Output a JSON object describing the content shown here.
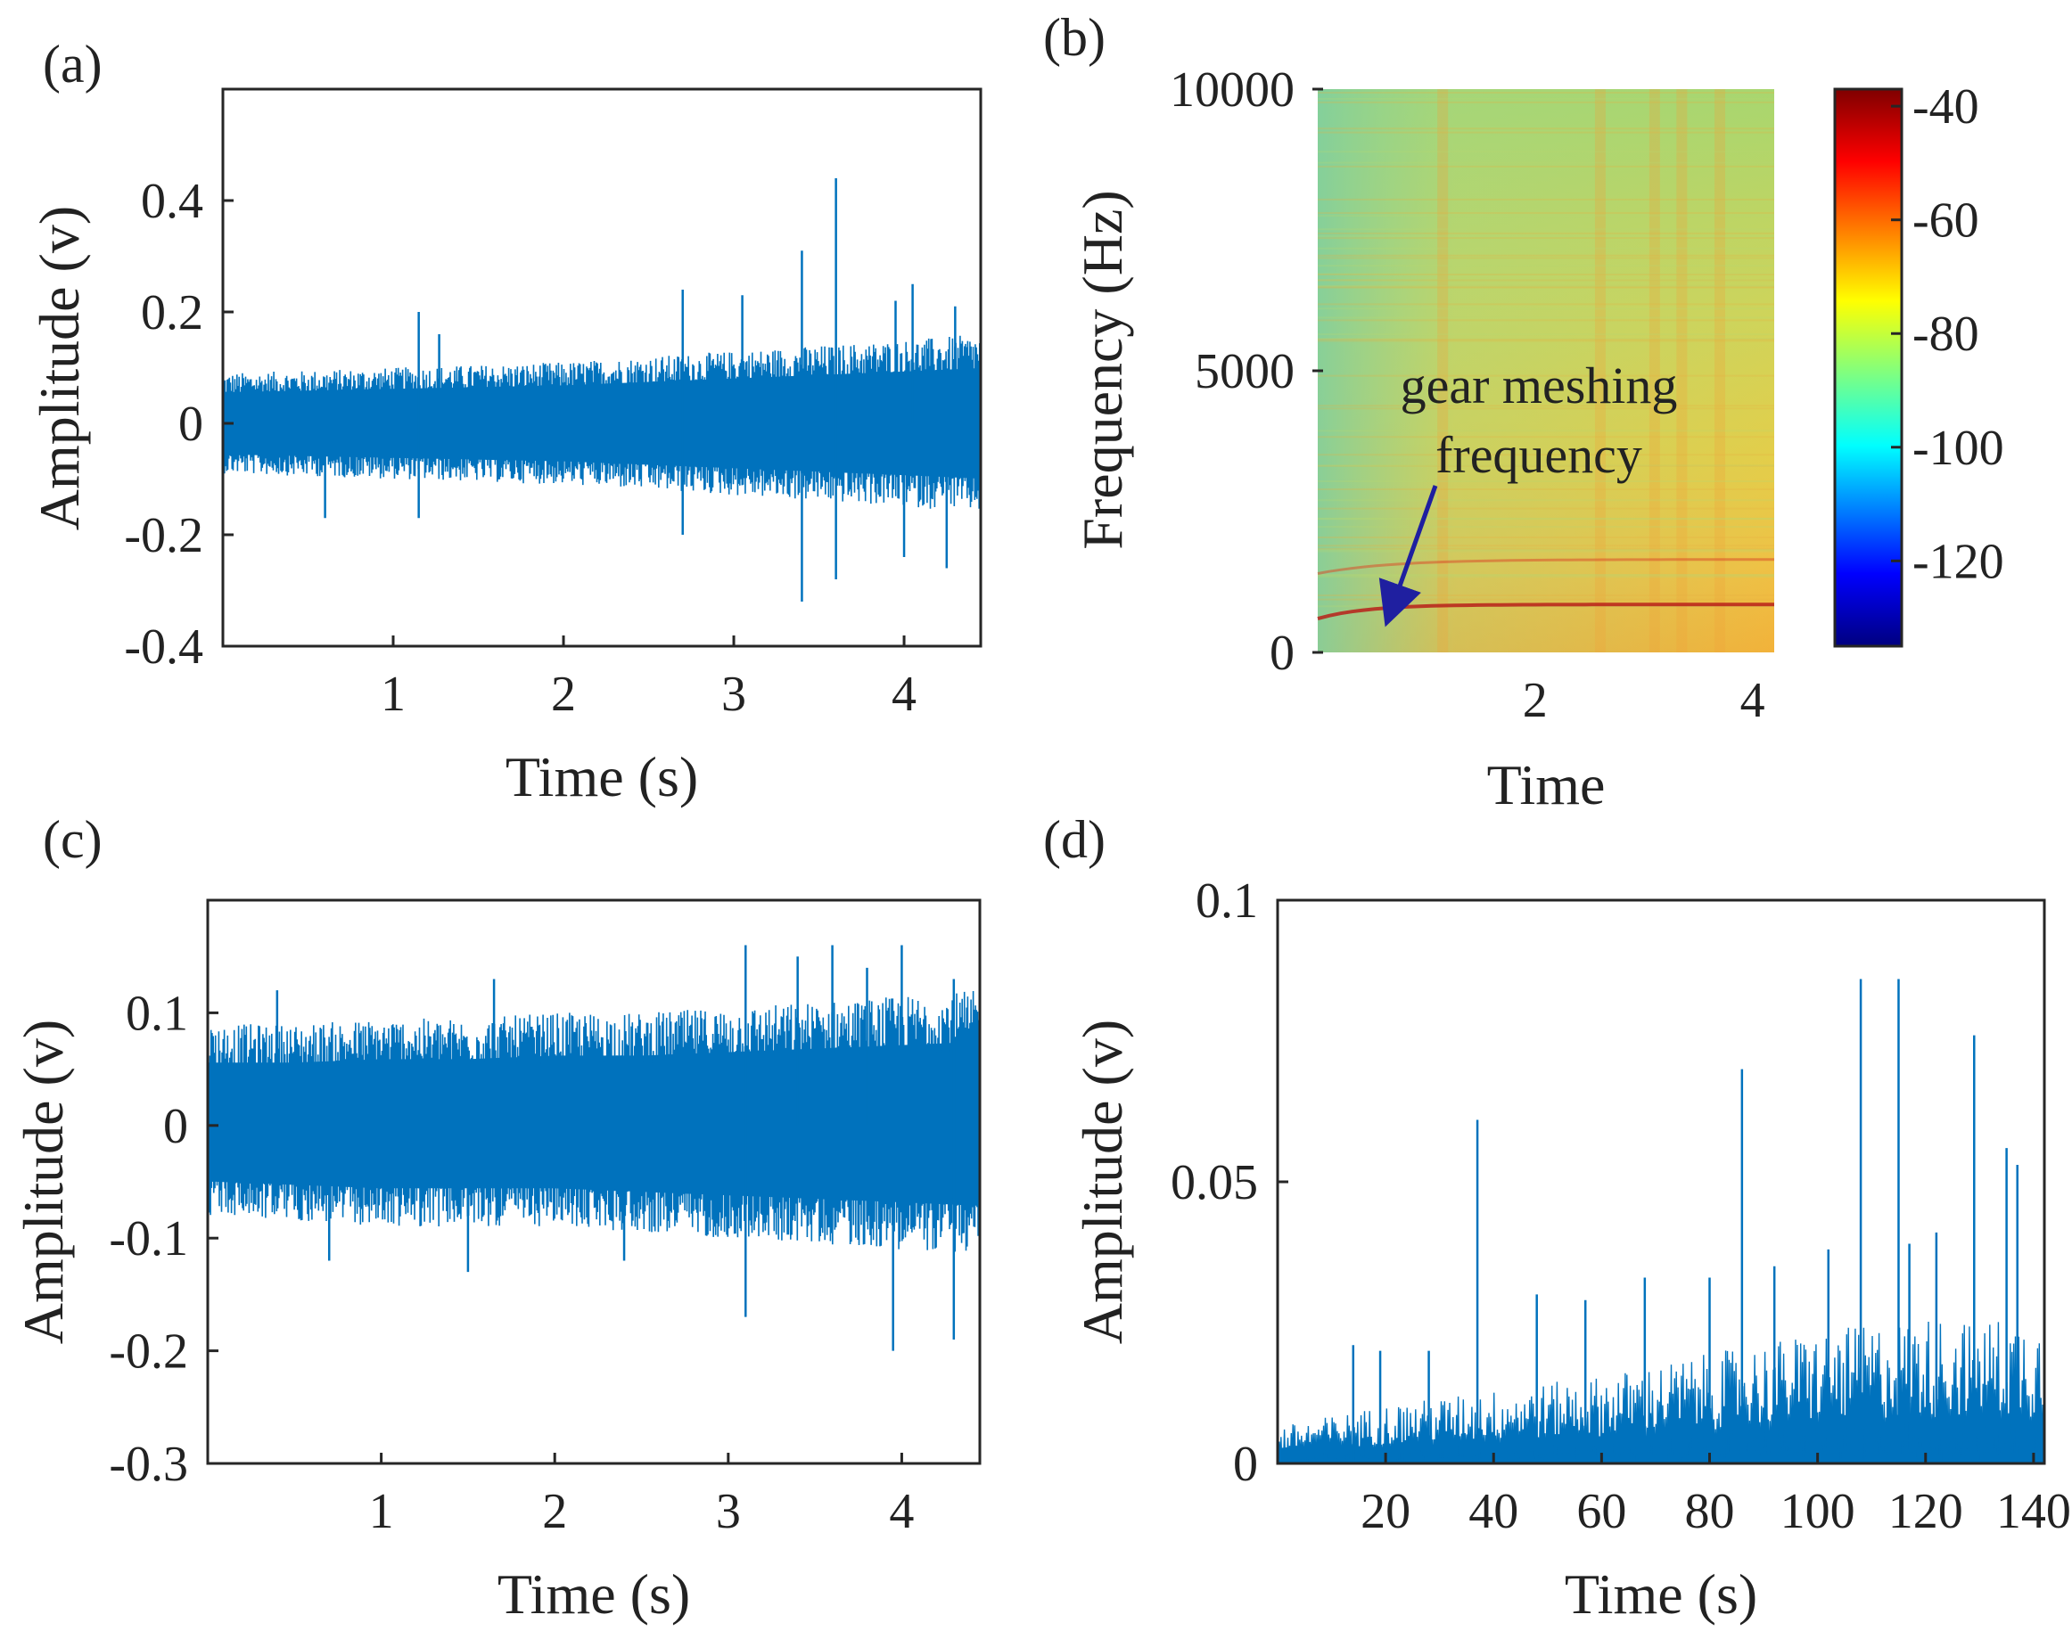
{
  "colors": {
    "signal": "#0072BD",
    "axis": "#262626",
    "arrow": "#1F1FA0",
    "text": "#222222"
  },
  "chart_data": [
    {
      "id": "a",
      "panel_label": "(a)",
      "type": "line",
      "xlabel": "Time (s)",
      "ylabel": "Amplitude (v)",
      "xlim": [
        0,
        4.45
      ],
      "ylim": [
        -0.4,
        0.6
      ],
      "xticks": [
        1,
        2,
        3,
        4
      ],
      "xtick_labels": [
        "1",
        "2",
        "3",
        "4"
      ],
      "yticks": [
        -0.4,
        -0.2,
        0,
        0.2,
        0.4
      ],
      "ytick_labels": [
        "-0.4",
        "-0.2",
        "0",
        "0.2",
        "0.4"
      ],
      "series": [
        {
          "envelope_x": [
            0,
            0.5,
            1,
            1.5,
            2,
            2.5,
            3,
            3.5,
            4,
            4.45
          ],
          "envelope_upper": [
            0.09,
            0.095,
            0.1,
            0.105,
            0.11,
            0.12,
            0.13,
            0.14,
            0.15,
            0.16
          ],
          "envelope_lower": [
            -0.09,
            -0.095,
            -0.1,
            -0.105,
            -0.11,
            -0.12,
            -0.13,
            -0.14,
            -0.15,
            -0.16
          ],
          "peaks": [
            [
              1.15,
              0.2
            ],
            [
              1.27,
              0.16
            ],
            [
              2.7,
              0.24
            ],
            [
              3.05,
              0.23
            ],
            [
              3.4,
              0.31
            ],
            [
              3.6,
              0.44
            ],
            [
              3.95,
              0.22
            ],
            [
              4.05,
              0.25
            ],
            [
              4.3,
              0.21
            ],
            [
              3.4,
              -0.32
            ],
            [
              3.6,
              -0.28
            ],
            [
              2.7,
              -0.2
            ],
            [
              4.0,
              -0.24
            ],
            [
              4.25,
              -0.26
            ],
            [
              0.6,
              -0.17
            ],
            [
              1.15,
              -0.17
            ]
          ]
        }
      ]
    },
    {
      "id": "b",
      "panel_label": "(b)",
      "type": "heatmap",
      "xlabel": "Time",
      "ylabel": "Frequency (Hz)",
      "xlim": [
        0,
        4.2
      ],
      "ylim": [
        0,
        10000
      ],
      "xticks": [
        2,
        4
      ],
      "xtick_labels": [
        "2",
        "4"
      ],
      "yticks": [
        0,
        5000,
        10000
      ],
      "ytick_labels": [
        "0",
        "5000",
        "10000"
      ],
      "colorbar": {
        "range": [
          -135,
          -37
        ],
        "ticks": [
          -40,
          -60,
          -80,
          -100,
          -120
        ],
        "tick_labels": [
          "-40",
          "-60",
          "-80",
          "-100",
          "-120"
        ]
      },
      "annotation": {
        "lines": [
          "gear meshing",
          "frequency"
        ],
        "target": [
          0.6,
          700
        ]
      },
      "meshing_line_hz": [
        600,
        850
      ],
      "harmonic_line_hz": [
        1400,
        1650
      ]
    },
    {
      "id": "c",
      "panel_label": "(c)",
      "type": "line",
      "xlabel": "Time (s)",
      "ylabel": "Amplitude (v)",
      "xlim": [
        0,
        4.45
      ],
      "ylim": [
        -0.3,
        0.2
      ],
      "xticks": [
        1,
        2,
        3,
        4
      ],
      "xtick_labels": [
        "1",
        "2",
        "3",
        "4"
      ],
      "yticks": [
        -0.3,
        -0.2,
        -0.1,
        0,
        0.1
      ],
      "ytick_labels": [
        "-0.3",
        "-0.2",
        "-0.1",
        "0",
        "0.1"
      ],
      "series": [
        {
          "envelope_x": [
            0,
            0.5,
            1,
            1.5,
            2,
            2.5,
            3,
            3.5,
            4,
            4.45
          ],
          "envelope_upper": [
            0.09,
            0.09,
            0.095,
            0.095,
            0.1,
            0.1,
            0.105,
            0.11,
            0.115,
            0.12
          ],
          "envelope_lower": [
            -0.08,
            -0.085,
            -0.09,
            -0.09,
            -0.09,
            -0.095,
            -0.1,
            -0.105,
            -0.11,
            -0.115
          ],
          "peaks": [
            [
              3.1,
              0.16
            ],
            [
              3.4,
              0.15
            ],
            [
              3.6,
              0.16
            ],
            [
              3.8,
              0.14
            ],
            [
              4.0,
              0.16
            ],
            [
              4.3,
              0.13
            ],
            [
              1.65,
              0.13
            ],
            [
              0.4,
              0.12
            ],
            [
              3.1,
              -0.17
            ],
            [
              3.95,
              -0.2
            ],
            [
              4.3,
              -0.19
            ],
            [
              0.7,
              -0.12
            ],
            [
              1.5,
              -0.13
            ],
            [
              2.4,
              -0.12
            ]
          ]
        }
      ]
    },
    {
      "id": "d",
      "panel_label": "(d)",
      "type": "line",
      "xlabel": "Time (s)",
      "ylabel": "Amplitude (v)",
      "xlim": [
        0,
        142
      ],
      "ylim": [
        0,
        0.1
      ],
      "xticks": [
        20,
        40,
        60,
        80,
        100,
        120,
        140
      ],
      "xtick_labels": [
        "20",
        "40",
        "60",
        "80",
        "100",
        "120",
        "140"
      ],
      "yticks": [
        0,
        0.05,
        0.1
      ],
      "ytick_labels": [
        "0",
        "0.05",
        "0.1"
      ],
      "series": [
        {
          "baseline_x": [
            0,
            20,
            40,
            60,
            80,
            100,
            120,
            142
          ],
          "baseline_upper": [
            0.005,
            0.008,
            0.01,
            0.012,
            0.015,
            0.018,
            0.02,
            0.02
          ],
          "peaks": [
            [
              37,
              0.061
            ],
            [
              48,
              0.03
            ],
            [
              57,
              0.029
            ],
            [
              68,
              0.033
            ],
            [
              80,
              0.033
            ],
            [
              86,
              0.07
            ],
            [
              92,
              0.035
            ],
            [
              102,
              0.038
            ],
            [
              108,
              0.086
            ],
            [
              115,
              0.086
            ],
            [
              117,
              0.039
            ],
            [
              122,
              0.041
            ],
            [
              129,
              0.076
            ],
            [
              135,
              0.056
            ],
            [
              137,
              0.053
            ],
            [
              14,
              0.021
            ],
            [
              19,
              0.02
            ],
            [
              28,
              0.02
            ]
          ]
        }
      ]
    }
  ]
}
